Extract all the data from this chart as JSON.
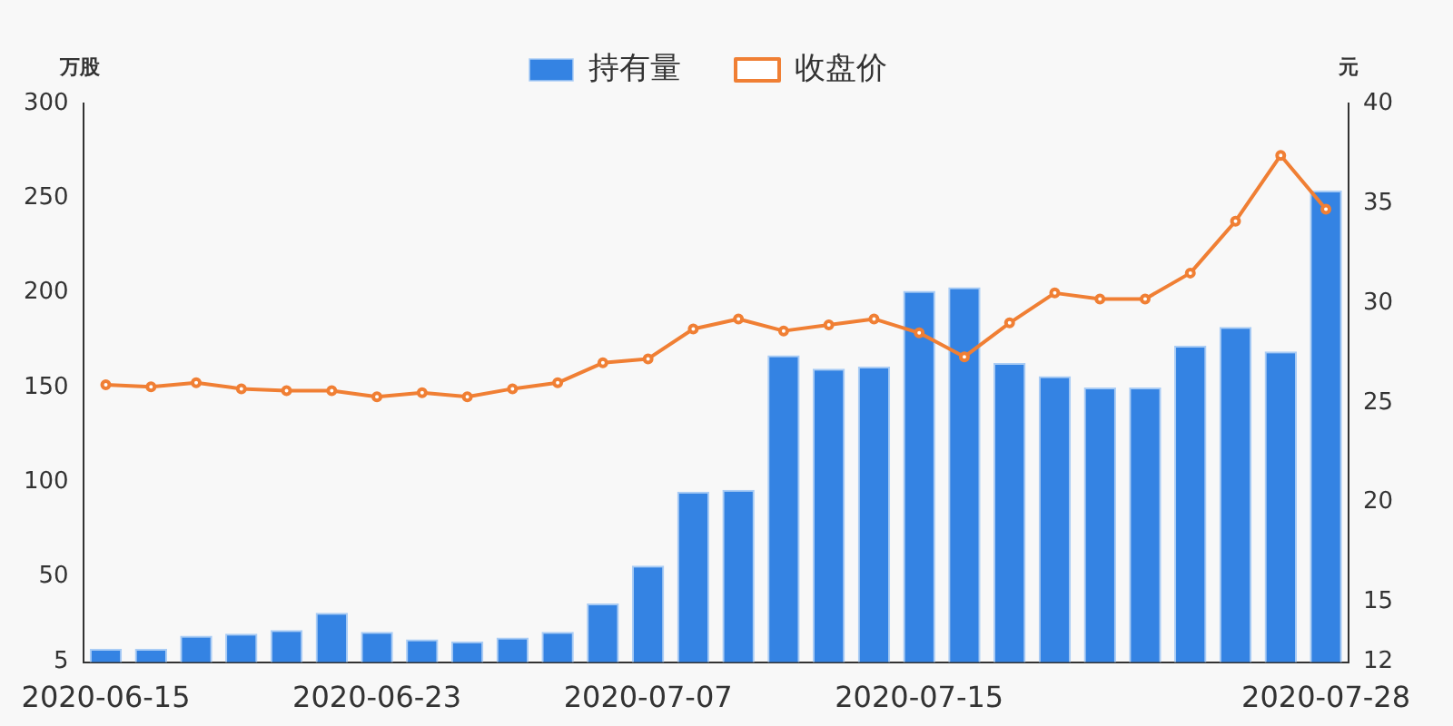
{
  "chart_data": {
    "type": "bar",
    "categories": [
      "2020-06-15",
      null,
      null,
      null,
      null,
      null,
      "2020-06-23",
      null,
      null,
      null,
      null,
      null,
      "2020-07-07",
      null,
      null,
      null,
      null,
      null,
      "2020-07-15",
      null,
      null,
      null,
      null,
      null,
      null,
      null,
      null,
      "2020-07-28"
    ],
    "series": [
      {
        "name": "持有量",
        "color": "#3483e3",
        "values": [
          12,
          12,
          19,
          20,
          22,
          31,
          21,
          17,
          16,
          18,
          21,
          36,
          56,
          95,
          96,
          167,
          160,
          161,
          201,
          203,
          163,
          156,
          150,
          150,
          172,
          182,
          169,
          254
        ]
      },
      {
        "name": "收盘价",
        "type": "line",
        "axis": "y2",
        "color": "#f07f34",
        "marker": "circle",
        "values": [
          25.9,
          25.8,
          26.0,
          25.7,
          25.6,
          25.6,
          25.3,
          25.5,
          25.3,
          25.7,
          26.0,
          27.0,
          27.2,
          28.7,
          29.2,
          28.6,
          28.9,
          29.2,
          28.5,
          27.3,
          29.0,
          30.5,
          30.2,
          30.2,
          31.5,
          34.1,
          37.4,
          34.7
        ]
      }
    ],
    "ylabel": "万股",
    "y2label": "元",
    "ylim": [
      5,
      300
    ],
    "yticks": [
      5,
      50,
      100,
      150,
      200,
      250,
      300
    ],
    "y2lim": [
      12,
      40
    ],
    "y2ticks": [
      12,
      15,
      20,
      25,
      30,
      35,
      40
    ],
    "legend": "top",
    "grid": false
  }
}
